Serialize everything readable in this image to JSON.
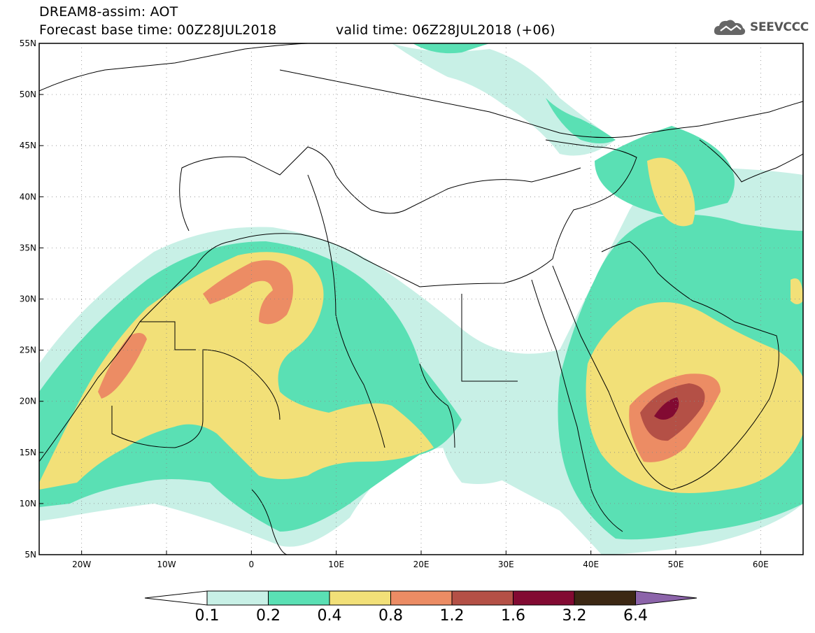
{
  "header": {
    "line1": "DREAM8-assim: AOT",
    "line2": "Forecast base time: 00Z28JUL2018",
    "valid": "valid time: 06Z28JUL2018 (+06)"
  },
  "logo": {
    "text": "SEEVCCC",
    "icon": "cloud-icon"
  },
  "map": {
    "lat_labels": [
      "55N",
      "50N",
      "45N",
      "40N",
      "35N",
      "30N",
      "25N",
      "20N",
      "15N",
      "10N",
      "5N"
    ],
    "lon_labels": [
      "20W",
      "10W",
      "0",
      "10E",
      "20E",
      "30E",
      "40E",
      "50E",
      "60E"
    ],
    "lon_range": [
      -25,
      65
    ],
    "lat_range": [
      5,
      55
    ],
    "grid": "dotted"
  },
  "legend": {
    "labels": [
      "0.1",
      "0.2",
      "0.4",
      "0.8",
      "1.2",
      "1.6",
      "3.2",
      "6.4"
    ],
    "colors": [
      "#c8f0e6",
      "#5ae0b4",
      "#f2e078",
      "#ec8c64",
      "#b45046",
      "#820a32",
      "#3c2814",
      "#8c64aa"
    ]
  }
}
